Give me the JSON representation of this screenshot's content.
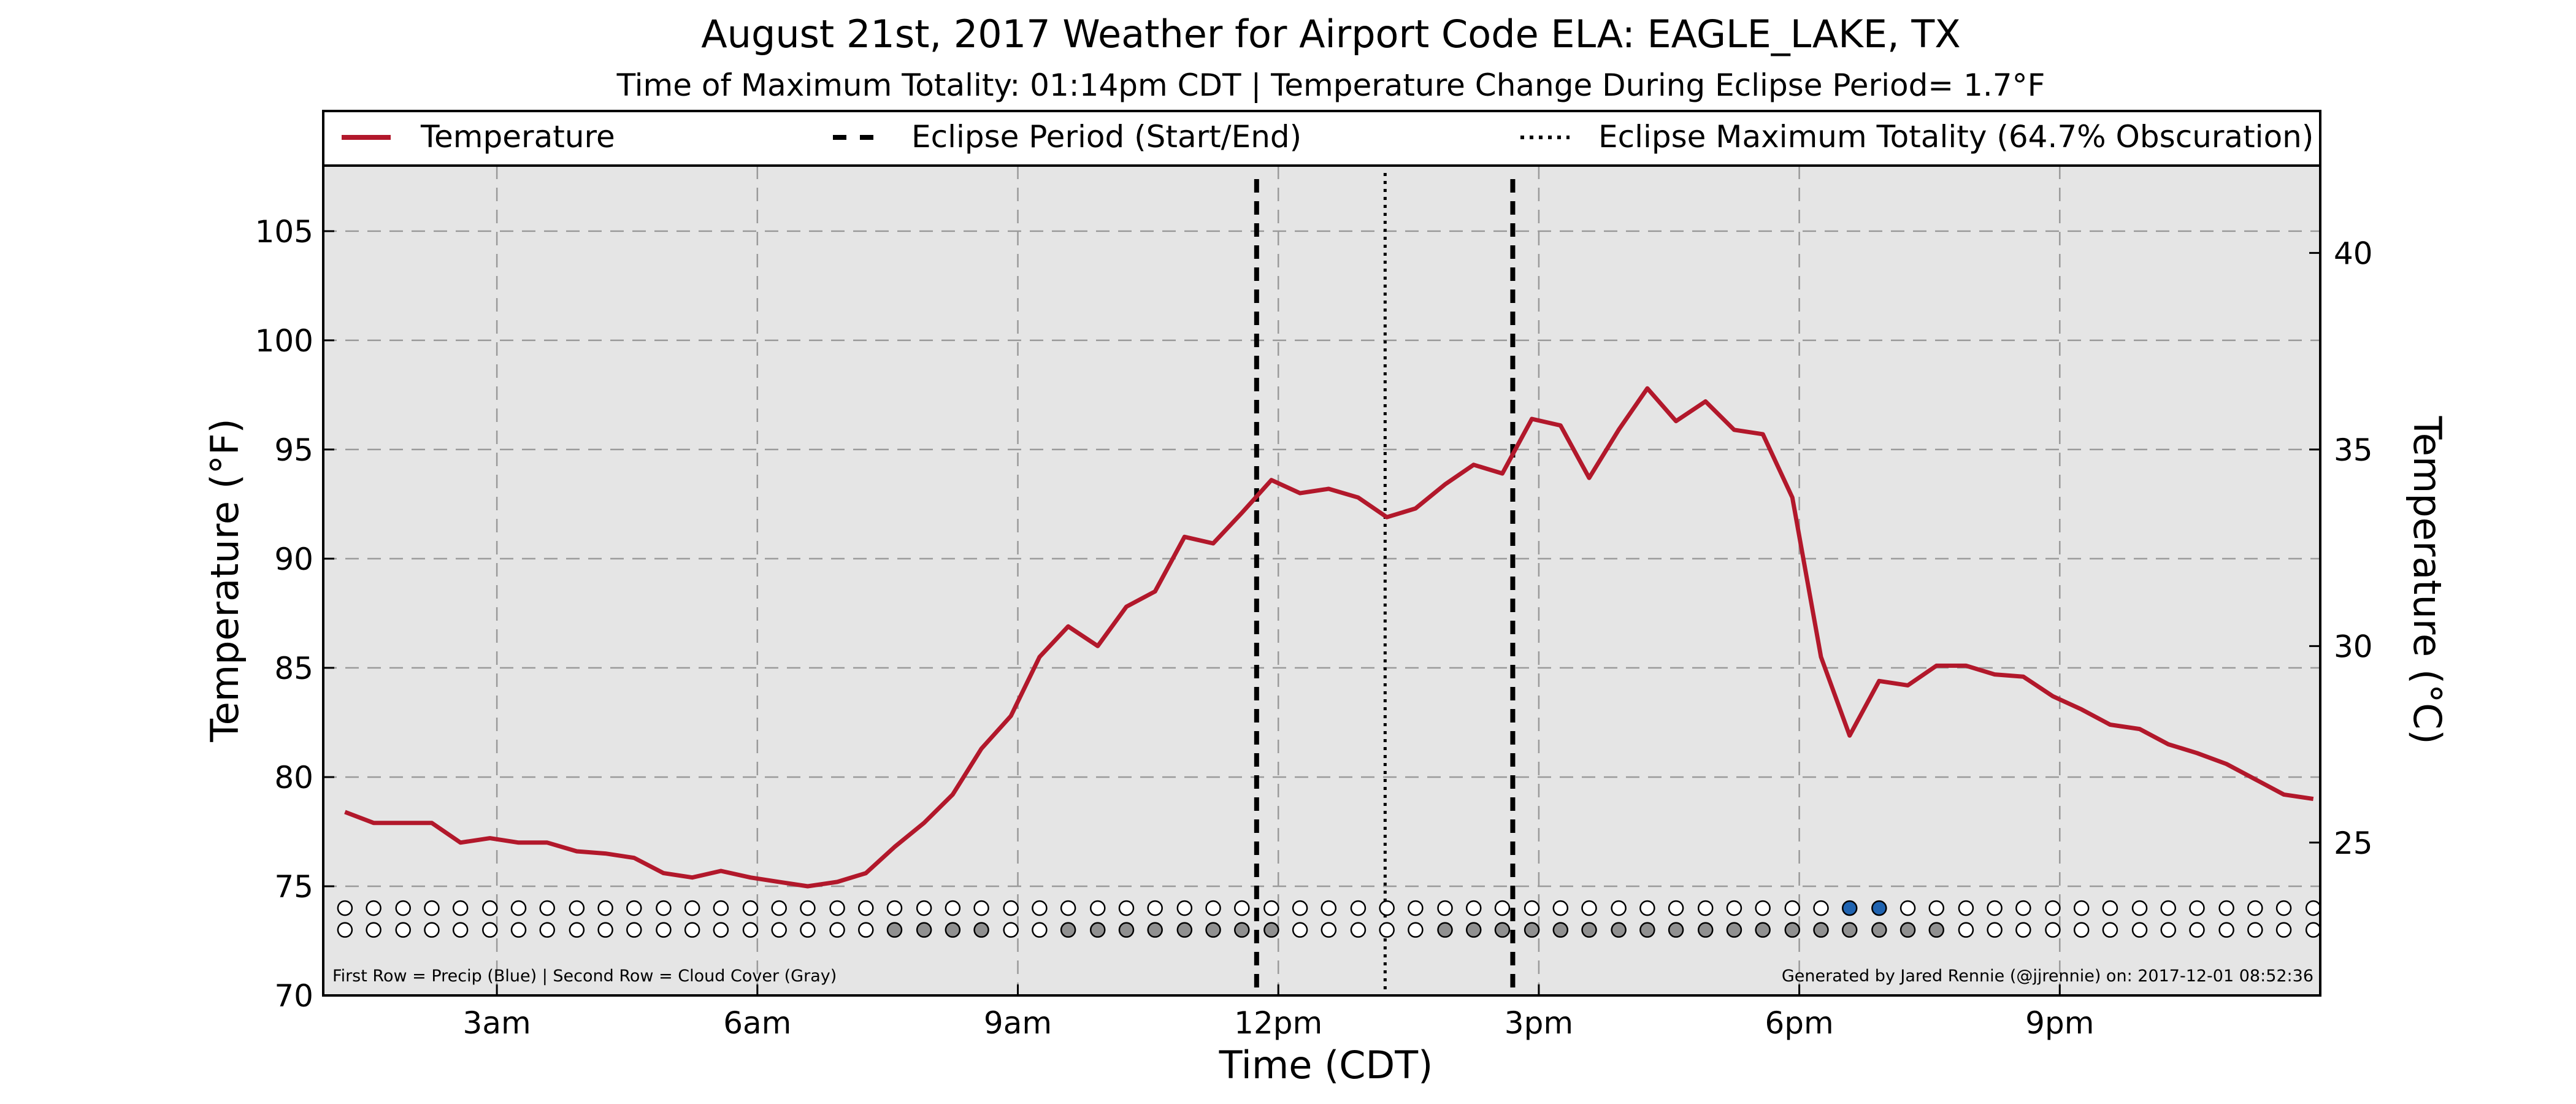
{
  "chart_data": {
    "type": "line",
    "title": "August 21st, 2017 Weather for Airport Code ELA: EAGLE_LAKE, TX",
    "subtitle": "Time of Maximum Totality: 01:14pm CDT | Temperature Change During Eclipse Period= 1.7°F",
    "xlabel": "Time (CDT)",
    "ylabel": "Temperature (°F)",
    "ylabel_right": "Temperature (°C)",
    "xlim": [
      1.0,
      24.0
    ],
    "ylim": [
      70,
      108
    ],
    "x_ticks": [
      {
        "value": 3,
        "label": "3am"
      },
      {
        "value": 6,
        "label": "6am"
      },
      {
        "value": 9,
        "label": "9am"
      },
      {
        "value": 12,
        "label": "12pm"
      },
      {
        "value": 15,
        "label": "3pm"
      },
      {
        "value": 18,
        "label": "6pm"
      },
      {
        "value": 21,
        "label": "9pm"
      }
    ],
    "y_ticks": [
      70,
      75,
      80,
      85,
      90,
      95,
      100,
      105
    ],
    "y_ticks_right": [
      25,
      30,
      35,
      40
    ],
    "grid": true,
    "legend_position": "top",
    "legend": [
      {
        "label": "Temperature",
        "style": "solid"
      },
      {
        "label": "Eclipse Period (Start/End)",
        "style": "dashed"
      },
      {
        "label": "Eclipse Maximum Totality (64.7% Obscuration)",
        "style": "dotted"
      }
    ],
    "series": [
      {
        "name": "Temperature",
        "color": "#b2182b",
        "x": [
          1.25,
          1.58,
          1.92,
          2.25,
          2.58,
          2.92,
          3.25,
          3.58,
          3.92,
          4.25,
          4.58,
          4.92,
          5.25,
          5.58,
          5.92,
          6.25,
          6.58,
          6.92,
          7.25,
          7.58,
          7.92,
          8.25,
          8.58,
          8.92,
          9.25,
          9.58,
          9.92,
          10.25,
          10.58,
          10.92,
          11.25,
          11.58,
          11.92,
          12.25,
          12.58,
          12.92,
          13.25,
          13.58,
          13.92,
          14.25,
          14.58,
          14.92,
          15.25,
          15.58,
          15.92,
          16.25,
          16.58,
          16.92,
          17.25,
          17.58,
          17.92,
          18.25,
          18.58,
          18.92,
          19.25,
          19.58,
          19.92,
          20.25,
          20.58,
          20.92,
          21.25,
          21.58,
          21.92,
          22.25,
          22.58,
          22.92,
          23.25,
          23.58,
          23.92
        ],
        "values": [
          78.4,
          77.9,
          77.9,
          77.9,
          77.0,
          77.2,
          77.0,
          77.0,
          76.6,
          76.5,
          76.3,
          75.6,
          75.4,
          75.7,
          75.4,
          75.2,
          75.0,
          75.2,
          75.6,
          76.8,
          77.9,
          79.2,
          81.3,
          82.8,
          85.5,
          86.9,
          86.0,
          87.8,
          88.5,
          91.0,
          90.7,
          92.1,
          93.6,
          93.0,
          93.2,
          92.8,
          91.9,
          92.3,
          93.4,
          94.3,
          93.9,
          96.4,
          96.1,
          93.7,
          95.9,
          97.8,
          96.3,
          97.2,
          95.9,
          95.7,
          92.8,
          85.5,
          81.9,
          84.4,
          84.2,
          85.1,
          85.1,
          84.7,
          84.6,
          83.7,
          83.1,
          82.4,
          82.2,
          81.5,
          81.1,
          80.6,
          79.9,
          79.2,
          79.0
        ]
      }
    ],
    "eclipse_start": 11.75,
    "eclipse_end": 14.7,
    "eclipse_max": 13.23,
    "indicator_rows": {
      "y_precip": 74.0,
      "y_cloud": 73.0,
      "x": [
        1.25,
        1.58,
        1.92,
        2.25,
        2.58,
        2.92,
        3.25,
        3.58,
        3.92,
        4.25,
        4.58,
        4.92,
        5.25,
        5.58,
        5.92,
        6.25,
        6.58,
        6.92,
        7.25,
        7.58,
        7.92,
        8.25,
        8.58,
        8.92,
        9.25,
        9.58,
        9.92,
        10.25,
        10.58,
        10.92,
        11.25,
        11.58,
        11.92,
        12.25,
        12.58,
        12.92,
        13.25,
        13.58,
        13.92,
        14.25,
        14.58,
        14.92,
        15.25,
        15.58,
        15.92,
        16.25,
        16.58,
        16.92,
        17.25,
        17.58,
        17.92,
        18.25,
        18.58,
        18.92,
        19.25,
        19.58,
        19.92,
        20.25,
        20.58,
        20.92,
        21.25,
        21.58,
        21.92,
        22.25,
        22.58,
        22.92,
        23.25,
        23.58,
        23.92
      ],
      "precip": [
        0,
        0,
        0,
        0,
        0,
        0,
        0,
        0,
        0,
        0,
        0,
        0,
        0,
        0,
        0,
        0,
        0,
        0,
        0,
        0,
        0,
        0,
        0,
        0,
        0,
        0,
        0,
        0,
        0,
        0,
        0,
        0,
        0,
        0,
        0,
        0,
        0,
        0,
        0,
        0,
        0,
        0,
        0,
        0,
        0,
        0,
        0,
        0,
        0,
        0,
        0,
        0,
        1,
        1,
        0,
        0,
        0,
        0,
        0,
        0,
        0,
        0,
        0,
        0,
        0,
        0,
        0,
        0,
        0
      ],
      "cloud": [
        0,
        0,
        0,
        0,
        0,
        0,
        0,
        0,
        0,
        0,
        0,
        0,
        0,
        0,
        0,
        0,
        0,
        0,
        0,
        1,
        1,
        1,
        1,
        0,
        0,
        1,
        1,
        1,
        1,
        1,
        1,
        1,
        1,
        0,
        0,
        0,
        0,
        0,
        1,
        1,
        1,
        1,
        1,
        1,
        1,
        1,
        1,
        1,
        1,
        1,
        1,
        1,
        1,
        1,
        1,
        1,
        0,
        0,
        0,
        0,
        0,
        0,
        0,
        0,
        0,
        0,
        0,
        0,
        0
      ],
      "precip_color": "#1f63b0",
      "cloud_color": "#909090",
      "empty_color": "#ffffff"
    },
    "footnote_left": "First Row = Precip (Blue) | Second Row = Cloud Cover (Gray)",
    "footnote_right": "Generated by Jared Rennie (@jjrennie) on: 2017-12-01 08:52:36",
    "background_color": "#e5e5e5"
  }
}
